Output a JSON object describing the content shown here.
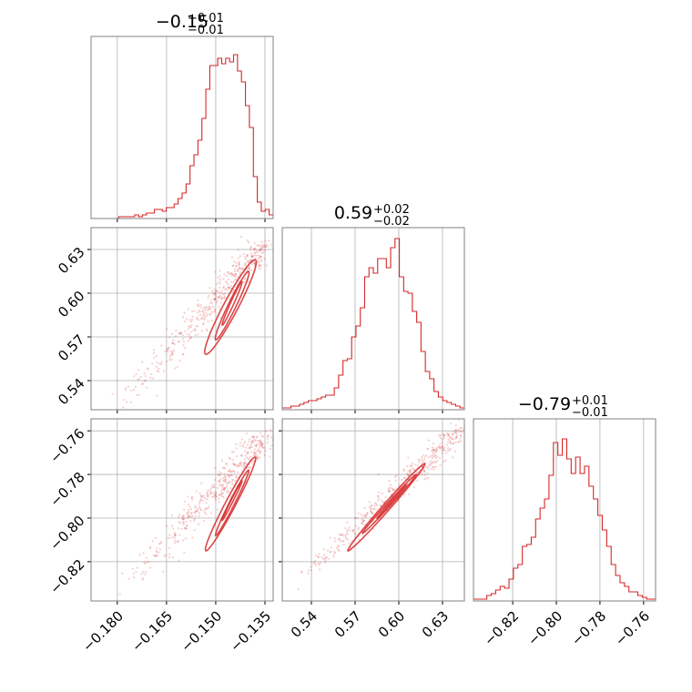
{
  "colors": {
    "line": "#d62728",
    "grid": "#b0b0b0",
    "frame": "#808080"
  },
  "chart_data": {
    "type": "corner",
    "parameters": [
      {
        "title": {
          "median": "−0.15",
          "plus": "+0.01",
          "minus": "−0.01"
        },
        "range": [
          -0.188,
          -0.1325
        ],
        "ticks": [
          -0.18,
          -0.165,
          -0.15,
          -0.135
        ],
        "tick_labels": [
          "−0.180",
          "−0.165",
          "−0.150",
          "−0.135"
        ],
        "hist_y": [
          0,
          0,
          0,
          0,
          0,
          0,
          0,
          0.01,
          0.01,
          0.01,
          0.01,
          0.02,
          0.01,
          0.02,
          0.03,
          0.03,
          0.05,
          0.05,
          0.04,
          0.06,
          0.06,
          0.08,
          0.11,
          0.14,
          0.19,
          0.29,
          0.35,
          0.43,
          0.55,
          0.71,
          0.84,
          0.84,
          0.88,
          0.85,
          0.88,
          0.86,
          0.9,
          0.81,
          0.75,
          0.62,
          0.5,
          0.23,
          0.09,
          0.04,
          0.05,
          0.02
        ]
      },
      {
        "title": {
          "median": "0.59",
          "plus": "+0.02",
          "minus": "−0.02"
        },
        "range": [
          0.52,
          0.645
        ],
        "ticks": [
          0.54,
          0.57,
          0.6,
          0.63
        ],
        "tick_labels": [
          "0.54",
          "0.57",
          "0.60",
          "0.63"
        ],
        "hist_y": [
          0.01,
          0.01,
          0.02,
          0.02,
          0.03,
          0.04,
          0.05,
          0.05,
          0.06,
          0.07,
          0.08,
          0.08,
          0.12,
          0.19,
          0.27,
          0.28,
          0.4,
          0.46,
          0.56,
          0.73,
          0.78,
          0.75,
          0.83,
          0.83,
          0.78,
          0.89,
          0.94,
          0.73,
          0.65,
          0.64,
          0.54,
          0.48,
          0.32,
          0.21,
          0.17,
          0.1,
          0.07,
          0.05,
          0.04,
          0.03,
          0.02,
          0.01
        ]
      },
      {
        "title": {
          "median": "−0.79",
          "plus": "+0.01",
          "minus": "−0.01"
        },
        "range": [
          -0.838,
          -0.7545
        ],
        "ticks": [
          -0.82,
          -0.8,
          -0.78,
          -0.76
        ],
        "tick_labels": [
          "−0.82",
          "−0.80",
          "−0.78",
          "−0.76"
        ],
        "hist_y": [
          0.01,
          0.01,
          0.01,
          0.03,
          0.04,
          0.06,
          0.08,
          0.07,
          0.12,
          0.18,
          0.2,
          0.3,
          0.31,
          0.35,
          0.45,
          0.51,
          0.56,
          0.69,
          0.87,
          0.8,
          0.89,
          0.78,
          0.7,
          0.79,
          0.7,
          0.74,
          0.63,
          0.56,
          0.47,
          0.39,
          0.3,
          0.2,
          0.14,
          0.1,
          0.08,
          0.05,
          0.05,
          0.03,
          0.02,
          0.01,
          0.01
        ]
      }
    ],
    "ylim_hist": [
      0,
      1.0
    ],
    "grid": true
  }
}
